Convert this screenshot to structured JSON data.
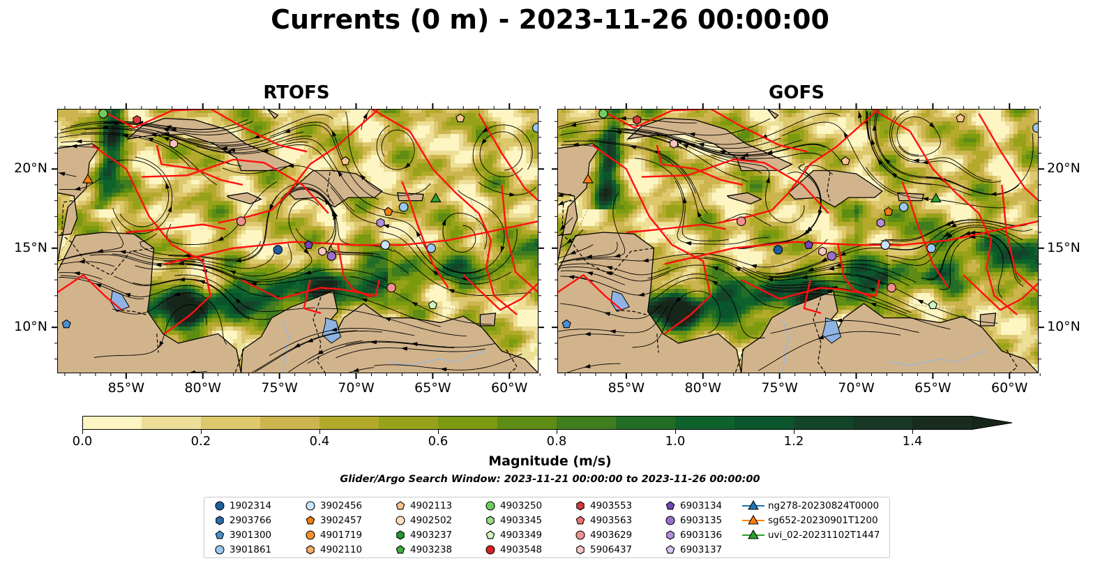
{
  "title": "Currents (0 m) - 2023-11-26 00:00:00",
  "panels": [
    {
      "id": "rtofs",
      "title": "RTOFS"
    },
    {
      "id": "gofs",
      "title": "GOFS"
    }
  ],
  "axes": {
    "lon_labels": [
      "85°W",
      "80°W",
      "75°W",
      "70°W",
      "65°W",
      "60°W"
    ],
    "lat_labels": [
      "20°N",
      "15°N",
      "10°N"
    ],
    "lon_range": [
      -89.5,
      -58.1
    ],
    "lat_range": [
      7.1,
      23.8
    ]
  },
  "colorbar": {
    "title": "Magnitude (m/s)",
    "tick_labels": [
      "0.0",
      "0.2",
      "0.4",
      "0.6",
      "0.8",
      "1.0",
      "1.2",
      "1.4"
    ],
    "range": [
      0,
      1.5
    ],
    "step": 0.1,
    "extend": "max",
    "colors": [
      "#fdf5c2",
      "#eddf98",
      "#ddc86e",
      "#ccb44f",
      "#b3aa2c",
      "#97a21a",
      "#7c9a10",
      "#5e8c14",
      "#3f7d1e",
      "#236d27",
      "#0e632c",
      "#0b552c",
      "#14452a",
      "#183826",
      "#192d1e",
      "#16261a"
    ]
  },
  "search_window": "Glider/Argo Search Window: 2023-11-21 00:00:00 to 2023-11-26 00:00:00",
  "legend": {
    "items": [
      {
        "label": "1902314",
        "marker": "circle",
        "color": "#1f5fa0"
      },
      {
        "label": "2903766",
        "marker": "hexagon",
        "color": "#2a6db0"
      },
      {
        "label": "3901300",
        "marker": "pentagon",
        "color": "#4a90d0"
      },
      {
        "label": "3901861",
        "marker": "circle",
        "color": "#9cc8ef"
      },
      {
        "label": "3902456",
        "marker": "circle",
        "color": "#c6e4fb"
      },
      {
        "label": "3902457",
        "marker": "pentagon",
        "color": "#f07f12"
      },
      {
        "label": "4901719",
        "marker": "circle",
        "color": "#f5922c"
      },
      {
        "label": "4902110",
        "marker": "hexagon",
        "color": "#f8ae63"
      },
      {
        "label": "4902113",
        "marker": "pentagon",
        "color": "#f8c48e"
      },
      {
        "label": "4902502",
        "marker": "circle",
        "color": "#fde0c0"
      },
      {
        "label": "4903237",
        "marker": "hexagon",
        "color": "#1f9a30"
      },
      {
        "label": "4903238",
        "marker": "pentagon",
        "color": "#3fae3a"
      },
      {
        "label": "4903250",
        "marker": "circle",
        "color": "#6fcd5f"
      },
      {
        "label": "4903345",
        "marker": "hexagon",
        "color": "#9ddc8a"
      },
      {
        "label": "4903349",
        "marker": "pentagon",
        "color": "#cdf3c0"
      },
      {
        "label": "4903548",
        "marker": "circle",
        "color": "#d62022"
      },
      {
        "label": "4903553",
        "marker": "hexagon",
        "color": "#d63a3a"
      },
      {
        "label": "4903563",
        "marker": "pentagon",
        "color": "#ef7070"
      },
      {
        "label": "4903629",
        "marker": "circle",
        "color": "#f29090"
      },
      {
        "label": "5906437",
        "marker": "hexagon",
        "color": "#fbc4c4"
      },
      {
        "label": "6903134",
        "marker": "pentagon",
        "color": "#7447b3"
      },
      {
        "label": "6903135",
        "marker": "circle",
        "color": "#9b6fcc"
      },
      {
        "label": "6903136",
        "marker": "hexagon",
        "color": "#b28ee0"
      },
      {
        "label": "6903137",
        "marker": "pentagon",
        "color": "#d7c3f5"
      },
      {
        "label": "ng278-20230824T0000",
        "marker": "triangle-line",
        "color": "#1f77b4"
      },
      {
        "label": "sg652-20230901T1200",
        "marker": "triangle-line",
        "color": "#ff7f0e"
      },
      {
        "label": "uvi_02-20231102T1447",
        "marker": "triangle-line",
        "color": "#2ca02c"
      }
    ]
  },
  "colors": {
    "land": "#d2b48c",
    "lake": "#8fb4e3",
    "eez": "#ff1010",
    "coast": "#000000",
    "streamline": "#000000"
  },
  "map_markers": [
    {
      "panel": "rtofs",
      "lon": -86.5,
      "lat": 23.5,
      "ref": "4903250"
    },
    {
      "panel": "rtofs",
      "lon": -84.3,
      "lat": 23.1,
      "ref": "4903553"
    },
    {
      "panel": "rtofs",
      "lon": -81.9,
      "lat": 21.6,
      "ref": "5906437"
    },
    {
      "panel": "rtofs",
      "lon": -87.5,
      "lat": 19.3,
      "ref": "sg652-20230901T1200"
    },
    {
      "panel": "rtofs",
      "lon": -77.5,
      "lat": 16.7,
      "ref": "4903629"
    },
    {
      "panel": "rtofs",
      "lon": -75.1,
      "lat": 14.9,
      "ref": "1902314"
    },
    {
      "panel": "rtofs",
      "lon": -73.1,
      "lat": 15.2,
      "ref": "6903134"
    },
    {
      "panel": "rtofs",
      "lon": -72.2,
      "lat": 14.8,
      "ref": "5906437"
    },
    {
      "panel": "rtofs",
      "lon": -71.6,
      "lat": 14.5,
      "ref": "6903135"
    },
    {
      "panel": "rtofs",
      "lon": -70.7,
      "lat": 20.5,
      "ref": "4902113"
    },
    {
      "panel": "rtofs",
      "lon": -68.4,
      "lat": 16.6,
      "ref": "6903136"
    },
    {
      "panel": "rtofs",
      "lon": -67.9,
      "lat": 17.3,
      "ref": "3902457"
    },
    {
      "panel": "rtofs",
      "lon": -66.9,
      "lat": 17.6,
      "ref": "3901861"
    },
    {
      "panel": "rtofs",
      "lon": -68.1,
      "lat": 15.2,
      "ref": "3902456"
    },
    {
      "panel": "rtofs",
      "lon": -67.7,
      "lat": 12.5,
      "ref": "4903629"
    },
    {
      "panel": "rtofs",
      "lon": -65.1,
      "lat": 15.0,
      "ref": "3901861"
    },
    {
      "panel": "rtofs",
      "lon": -64.8,
      "lat": 18.1,
      "ref": "uvi_02-20231102T1447"
    },
    {
      "panel": "rtofs",
      "lon": -63.2,
      "lat": 23.2,
      "ref": "4902113"
    },
    {
      "panel": "rtofs",
      "lon": -65.0,
      "lat": 11.4,
      "ref": "4903349"
    },
    {
      "panel": "rtofs",
      "lon": -88.9,
      "lat": 10.2,
      "ref": "3901300"
    },
    {
      "panel": "rtofs",
      "lon": -58.2,
      "lat": 22.6,
      "ref": "3901861"
    },
    {
      "panel": "gofs",
      "lon": -86.5,
      "lat": 23.5,
      "ref": "4903250"
    },
    {
      "panel": "gofs",
      "lon": -84.3,
      "lat": 23.1,
      "ref": "4903553"
    },
    {
      "panel": "gofs",
      "lon": -81.9,
      "lat": 21.6,
      "ref": "5906437"
    },
    {
      "panel": "gofs",
      "lon": -87.5,
      "lat": 19.3,
      "ref": "sg652-20230901T1200"
    },
    {
      "panel": "gofs",
      "lon": -77.5,
      "lat": 16.7,
      "ref": "4903629"
    },
    {
      "panel": "gofs",
      "lon": -75.1,
      "lat": 14.9,
      "ref": "1902314"
    },
    {
      "panel": "gofs",
      "lon": -73.1,
      "lat": 15.2,
      "ref": "6903134"
    },
    {
      "panel": "gofs",
      "lon": -72.2,
      "lat": 14.8,
      "ref": "5906437"
    },
    {
      "panel": "gofs",
      "lon": -71.6,
      "lat": 14.5,
      "ref": "6903135"
    },
    {
      "panel": "gofs",
      "lon": -70.7,
      "lat": 20.5,
      "ref": "4902113"
    },
    {
      "panel": "gofs",
      "lon": -68.4,
      "lat": 16.6,
      "ref": "6903136"
    },
    {
      "panel": "gofs",
      "lon": -67.9,
      "lat": 17.3,
      "ref": "3902457"
    },
    {
      "panel": "gofs",
      "lon": -66.9,
      "lat": 17.6,
      "ref": "3901861"
    },
    {
      "panel": "gofs",
      "lon": -68.1,
      "lat": 15.2,
      "ref": "3902456"
    },
    {
      "panel": "gofs",
      "lon": -67.7,
      "lat": 12.5,
      "ref": "4903629"
    },
    {
      "panel": "gofs",
      "lon": -65.1,
      "lat": 15.0,
      "ref": "3901861"
    },
    {
      "panel": "gofs",
      "lon": -64.8,
      "lat": 18.1,
      "ref": "uvi_02-20231102T1447"
    },
    {
      "panel": "gofs",
      "lon": -63.2,
      "lat": 23.2,
      "ref": "4902113"
    },
    {
      "panel": "gofs",
      "lon": -65.0,
      "lat": 11.4,
      "ref": "4903349"
    },
    {
      "panel": "gofs",
      "lon": -88.9,
      "lat": 10.2,
      "ref": "3901300"
    },
    {
      "panel": "gofs",
      "lon": -58.2,
      "lat": 22.6,
      "ref": "3901861"
    }
  ]
}
